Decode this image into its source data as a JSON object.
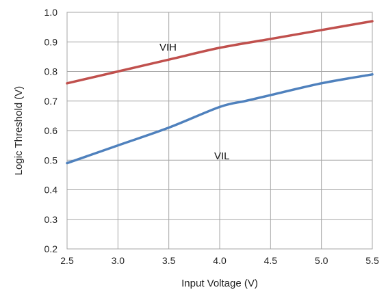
{
  "chart_data": {
    "type": "line",
    "title": "",
    "xlabel": "Input Voltage (V)",
    "ylabel": "Logic Threshold (V)",
    "xlim": [
      2.5,
      5.5
    ],
    "ylim": [
      0.2,
      1.0
    ],
    "x_ticks": [
      "2.5",
      "3.0",
      "3.5",
      "4.0",
      "4.5",
      "5.0",
      "5.5"
    ],
    "y_ticks": [
      "0.2",
      "0.3",
      "0.4",
      "0.5",
      "0.6",
      "0.7",
      "0.8",
      "0.9",
      "1.0"
    ],
    "grid": true,
    "legend": "none",
    "series": [
      {
        "name": "VIH",
        "color": "#c0504d",
        "x": [
          2.5,
          3.0,
          3.5,
          4.0,
          4.5,
          5.0,
          5.5
        ],
        "y": [
          0.76,
          0.8,
          0.84,
          0.88,
          0.91,
          0.94,
          0.97
        ]
      },
      {
        "name": "VIL",
        "color": "#4f81bd",
        "x": [
          2.5,
          3.0,
          3.5,
          4.0,
          4.25,
          4.5,
          5.0,
          5.5
        ],
        "y": [
          0.49,
          0.55,
          0.61,
          0.68,
          0.7,
          0.72,
          0.76,
          0.79
        ]
      }
    ]
  }
}
